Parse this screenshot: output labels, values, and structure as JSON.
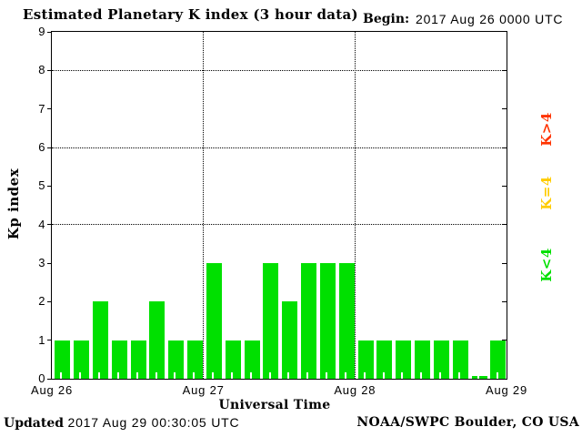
{
  "header": {
    "begin_label": "Begin:",
    "begin_value": "2017 Aug 26 0000 UTC"
  },
  "chart_data": {
    "type": "bar",
    "title": "Estimated Planetary K index (3 hour data)",
    "xlabel": "Universal Time",
    "ylabel": "Kp index",
    "ylim": [
      0,
      9
    ],
    "yticks": [
      0,
      1,
      2,
      3,
      4,
      5,
      6,
      7,
      8,
      9
    ],
    "grid_y": [
      4,
      6,
      8
    ],
    "grid_style": "dotted",
    "bin_hours": 3,
    "x_day_labels": [
      "Aug 26",
      "Aug 27",
      "Aug 28",
      "Aug 29"
    ],
    "values": [
      1,
      1,
      2,
      1,
      1,
      2,
      1,
      1,
      3,
      1,
      1,
      3,
      2,
      3,
      3,
      3,
      1,
      1,
      1,
      1,
      1,
      1,
      0,
      1
    ],
    "bar_color": "#00e000",
    "legend_position": "right",
    "legend": [
      {
        "label": "K>4",
        "color": "#ff3300"
      },
      {
        "label": "K=4",
        "color": "#ffcc00"
      },
      {
        "label": "K<4",
        "color": "#00e000"
      }
    ]
  },
  "footer": {
    "updated_label": "Updated",
    "updated_value": "2017 Aug 29 00:30:05 UTC",
    "source": "NOAA/SWPC Boulder, CO USA"
  }
}
